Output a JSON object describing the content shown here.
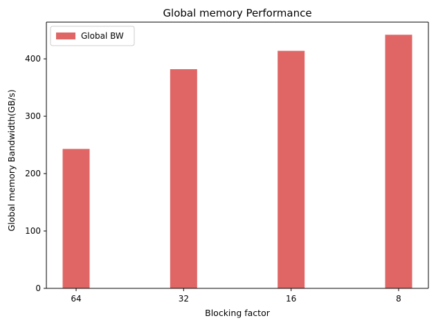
{
  "chart_data": {
    "type": "bar",
    "title": "Global memory Performance",
    "xlabel": "Blocking factor",
    "ylabel": "Global memory Bandwidth(GB/s)",
    "categories": [
      "64",
      "32",
      "16",
      "8"
    ],
    "series": [
      {
        "name": "Global BW",
        "values": [
          243,
          382,
          414,
          442
        ],
        "color": "#e06666"
      }
    ],
    "yticks": [
      "0",
      "100",
      "200",
      "300",
      "400"
    ],
    "ylim": [
      0,
      464
    ],
    "grid": false,
    "legend": "top-left"
  }
}
